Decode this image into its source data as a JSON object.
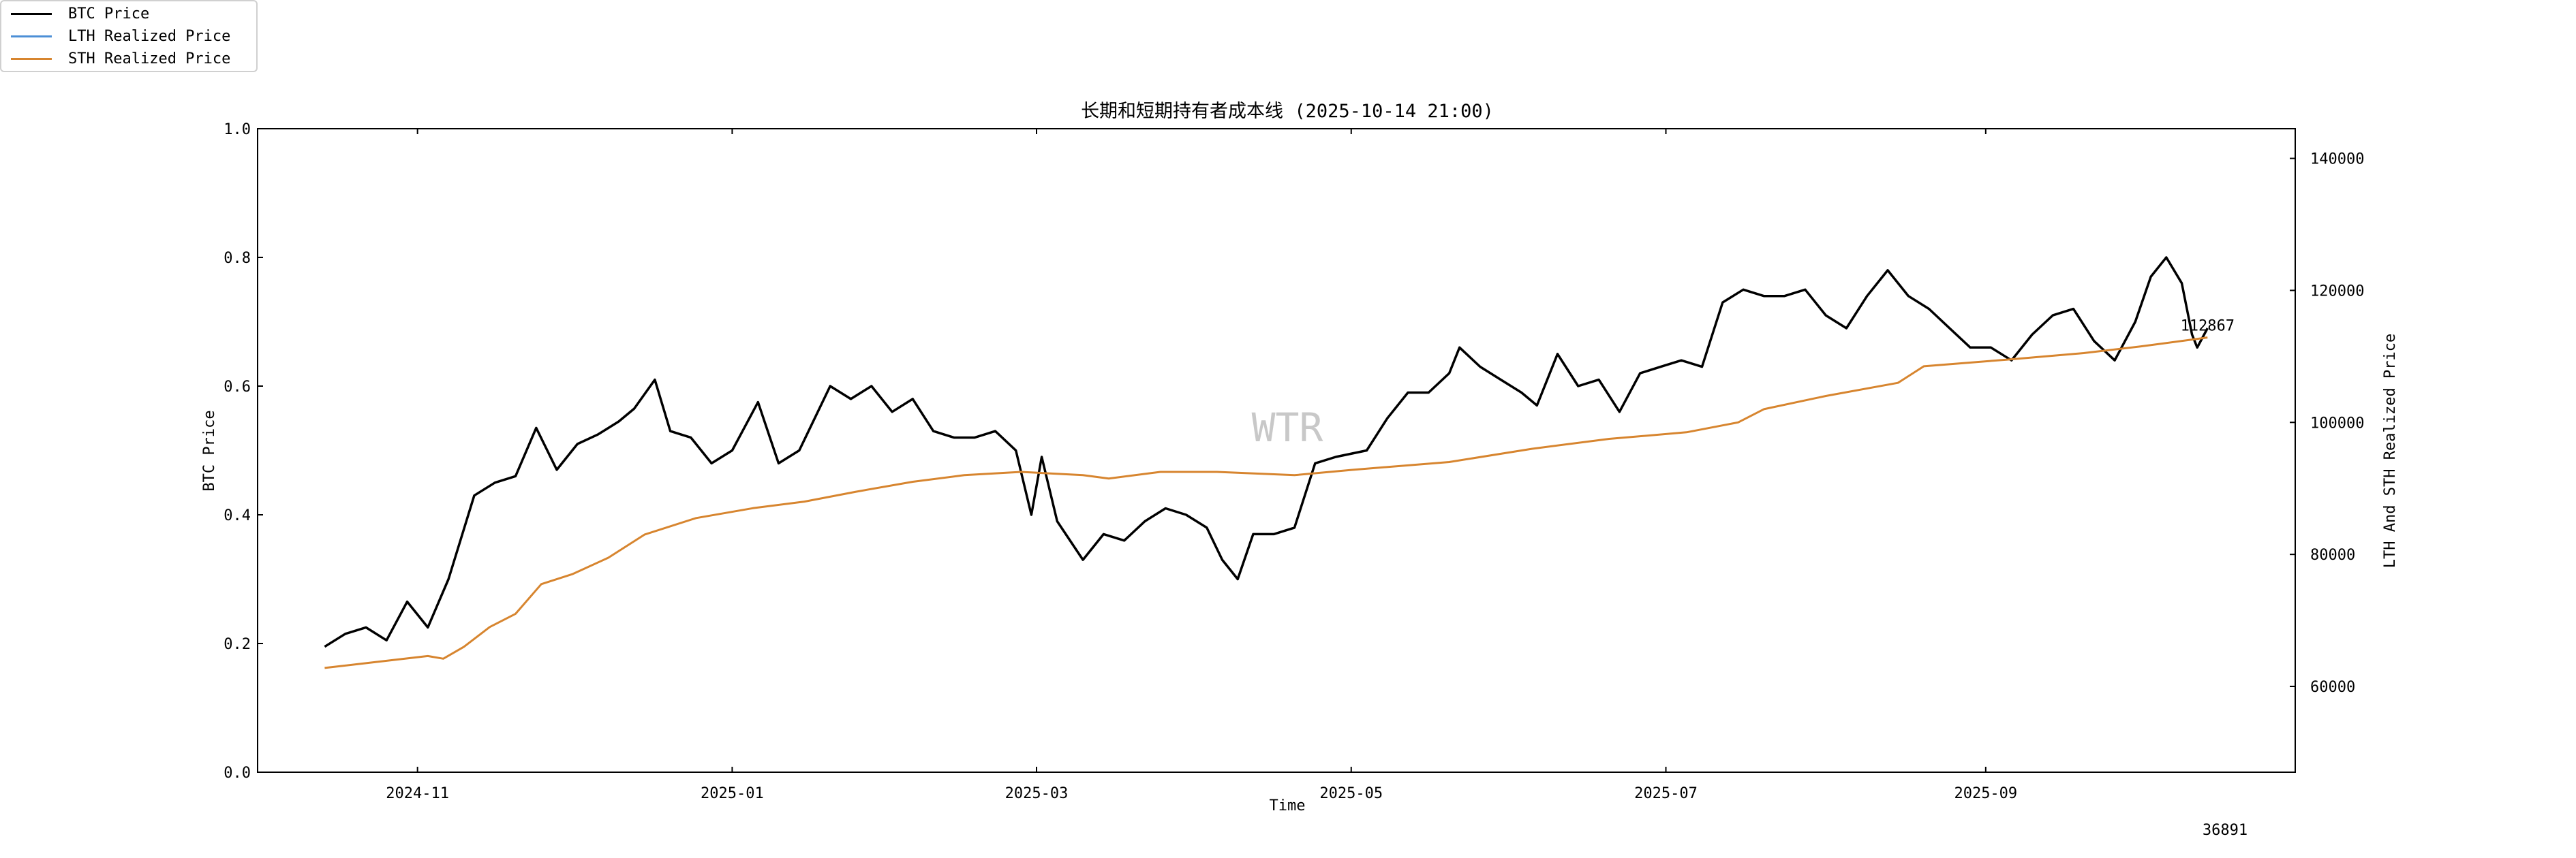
{
  "chart_data": {
    "type": "line",
    "title": "长期和短期持有者成本线 (2025-10-14 21:00)",
    "xlabel": "Time",
    "ylabel_left": "BTC Price",
    "ylabel_right": "LTH And STH Realized Price",
    "xlim": [
      "2024-10-01",
      "2025-10-31"
    ],
    "ylim_left": [
      0.0,
      1.0
    ],
    "ylim_right": [
      47000,
      144500
    ],
    "x_ticks": [
      "2024-11",
      "2025-01",
      "2025-03",
      "2025-05",
      "2025-07",
      "2025-09"
    ],
    "y_ticks_left": [
      "0.0",
      "0.2",
      "0.4",
      "0.6",
      "0.8",
      "1.0"
    ],
    "y_ticks_right": [
      "60000",
      "80000",
      "100000",
      "120000",
      "140000"
    ],
    "grid": false,
    "legend_position": "top-left",
    "watermark": "WTR",
    "annotation": "112867",
    "footer_number": "36891",
    "series": [
      {
        "name": "BTC Price",
        "color": "#000000",
        "axis": "left",
        "points": [
          [
            "2024-10-14",
            0.195
          ],
          [
            "2024-10-18",
            0.215
          ],
          [
            "2024-10-22",
            0.225
          ],
          [
            "2024-10-26",
            0.205
          ],
          [
            "2024-10-30",
            0.265
          ],
          [
            "2024-11-03",
            0.225
          ],
          [
            "2024-11-07",
            0.3
          ],
          [
            "2024-11-12",
            0.43
          ],
          [
            "2024-11-16",
            0.45
          ],
          [
            "2024-11-20",
            0.46
          ],
          [
            "2024-11-24",
            0.535
          ],
          [
            "2024-11-28",
            0.47
          ],
          [
            "2024-12-02",
            0.51
          ],
          [
            "2024-12-06",
            0.525
          ],
          [
            "2024-12-10",
            0.545
          ],
          [
            "2024-12-13",
            0.565
          ],
          [
            "2024-12-17",
            0.61
          ],
          [
            "2024-12-20",
            0.53
          ],
          [
            "2024-12-24",
            0.52
          ],
          [
            "2024-12-28",
            0.48
          ],
          [
            "2025-01-01",
            0.5
          ],
          [
            "2025-01-06",
            0.575
          ],
          [
            "2025-01-10",
            0.48
          ],
          [
            "2025-01-14",
            0.5
          ],
          [
            "2025-01-20",
            0.6
          ],
          [
            "2025-01-24",
            0.58
          ],
          [
            "2025-01-28",
            0.6
          ],
          [
            "2025-02-01",
            0.56
          ],
          [
            "2025-02-05",
            0.58
          ],
          [
            "2025-02-09",
            0.53
          ],
          [
            "2025-02-13",
            0.52
          ],
          [
            "2025-02-17",
            0.52
          ],
          [
            "2025-02-21",
            0.53
          ],
          [
            "2025-02-25",
            0.5
          ],
          [
            "2025-02-28",
            0.4
          ],
          [
            "2025-03-02",
            0.49
          ],
          [
            "2025-03-05",
            0.39
          ],
          [
            "2025-03-10",
            0.33
          ],
          [
            "2025-03-14",
            0.37
          ],
          [
            "2025-03-18",
            0.36
          ],
          [
            "2025-03-22",
            0.39
          ],
          [
            "2025-03-26",
            0.41
          ],
          [
            "2025-03-30",
            0.4
          ],
          [
            "2025-04-03",
            0.38
          ],
          [
            "2025-04-06",
            0.33
          ],
          [
            "2025-04-09",
            0.3
          ],
          [
            "2025-04-12",
            0.37
          ],
          [
            "2025-04-16",
            0.37
          ],
          [
            "2025-04-20",
            0.38
          ],
          [
            "2025-04-24",
            0.48
          ],
          [
            "2025-04-28",
            0.49
          ],
          [
            "2025-05-04",
            0.5
          ],
          [
            "2025-05-08",
            0.55
          ],
          [
            "2025-05-12",
            0.59
          ],
          [
            "2025-05-16",
            0.59
          ],
          [
            "2025-05-20",
            0.62
          ],
          [
            "2025-05-22",
            0.66
          ],
          [
            "2025-05-26",
            0.63
          ],
          [
            "2025-05-30",
            0.61
          ],
          [
            "2025-06-03",
            0.59
          ],
          [
            "2025-06-06",
            0.57
          ],
          [
            "2025-06-10",
            0.65
          ],
          [
            "2025-06-14",
            0.6
          ],
          [
            "2025-06-18",
            0.61
          ],
          [
            "2025-06-22",
            0.56
          ],
          [
            "2025-06-26",
            0.62
          ],
          [
            "2025-06-30",
            0.63
          ],
          [
            "2025-07-04",
            0.64
          ],
          [
            "2025-07-08",
            0.63
          ],
          [
            "2025-07-12",
            0.73
          ],
          [
            "2025-07-16",
            0.75
          ],
          [
            "2025-07-20",
            0.74
          ],
          [
            "2025-07-24",
            0.74
          ],
          [
            "2025-07-28",
            0.75
          ],
          [
            "2025-08-01",
            0.71
          ],
          [
            "2025-08-05",
            0.69
          ],
          [
            "2025-08-09",
            0.74
          ],
          [
            "2025-08-13",
            0.78
          ],
          [
            "2025-08-17",
            0.74
          ],
          [
            "2025-08-21",
            0.72
          ],
          [
            "2025-08-25",
            0.69
          ],
          [
            "2025-08-29",
            0.66
          ],
          [
            "2025-09-02",
            0.66
          ],
          [
            "2025-09-06",
            0.64
          ],
          [
            "2025-09-10",
            0.68
          ],
          [
            "2025-09-14",
            0.71
          ],
          [
            "2025-09-18",
            0.72
          ],
          [
            "2025-09-22",
            0.67
          ],
          [
            "2025-09-26",
            0.64
          ],
          [
            "2025-09-30",
            0.7
          ],
          [
            "2025-10-03",
            0.77
          ],
          [
            "2025-10-06",
            0.8
          ],
          [
            "2025-10-09",
            0.76
          ],
          [
            "2025-10-11",
            0.68
          ],
          [
            "2025-10-12",
            0.66
          ],
          [
            "2025-10-14",
            0.69
          ]
        ]
      },
      {
        "name": "LTH Realized Price",
        "color": "#4c8fd6",
        "axis": "right",
        "points": []
      },
      {
        "name": "STH Realized Price",
        "color": "#d7852f",
        "axis": "right",
        "points": [
          [
            "2024-10-14",
            62800
          ],
          [
            "2024-10-24",
            63700
          ],
          [
            "2024-11-03",
            64600
          ],
          [
            "2024-11-06",
            64200
          ],
          [
            "2024-11-10",
            66000
          ],
          [
            "2024-11-15",
            69000
          ],
          [
            "2024-11-20",
            71000
          ],
          [
            "2024-11-25",
            75500
          ],
          [
            "2024-12-01",
            77000
          ],
          [
            "2024-12-08",
            79500
          ],
          [
            "2024-12-15",
            83000
          ],
          [
            "2024-12-25",
            85500
          ],
          [
            "2025-01-05",
            87000
          ],
          [
            "2025-01-15",
            88000
          ],
          [
            "2025-01-25",
            89500
          ],
          [
            "2025-02-05",
            91000
          ],
          [
            "2025-02-15",
            92000
          ],
          [
            "2025-02-26",
            92500
          ],
          [
            "2025-03-10",
            92000
          ],
          [
            "2025-03-15",
            91500
          ],
          [
            "2025-03-25",
            92500
          ],
          [
            "2025-04-05",
            92500
          ],
          [
            "2025-04-20",
            92000
          ],
          [
            "2025-05-01",
            92800
          ],
          [
            "2025-05-20",
            94000
          ],
          [
            "2025-06-05",
            96000
          ],
          [
            "2025-06-20",
            97500
          ],
          [
            "2025-07-05",
            98500
          ],
          [
            "2025-07-15",
            100000
          ],
          [
            "2025-07-20",
            102000
          ],
          [
            "2025-08-01",
            104000
          ],
          [
            "2025-08-15",
            106000
          ],
          [
            "2025-08-20",
            108500
          ],
          [
            "2025-09-05",
            109500
          ],
          [
            "2025-09-20",
            110500
          ],
          [
            "2025-10-01",
            111500
          ],
          [
            "2025-10-14",
            112867
          ]
        ]
      }
    ]
  }
}
